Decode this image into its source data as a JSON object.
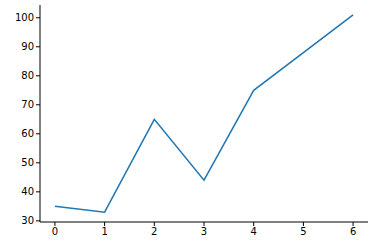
{
  "chart_data": {
    "type": "line",
    "x": [
      0,
      1,
      2,
      3,
      4,
      6
    ],
    "values": [
      35,
      33,
      65,
      44,
      75,
      101
    ],
    "color": "#1f77b4",
    "xlim": [
      -0.3,
      6.3
    ],
    "xticks": [
      0,
      1,
      2,
      3,
      4,
      5,
      6
    ],
    "ylim": [
      29.6,
      104.4
    ],
    "yticks": [
      30,
      40,
      50,
      60,
      70,
      80,
      90,
      100
    ]
  }
}
